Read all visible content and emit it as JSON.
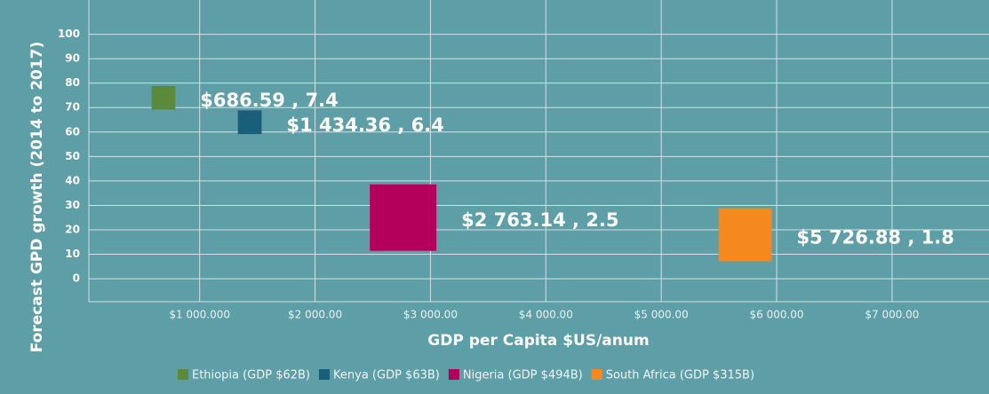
{
  "chart_data": {
    "type": "bubble",
    "x_label": "GDP per Capita $US/anum",
    "y_label": "Forecast GPD growth (2014 to 2017)",
    "xlim": [
      40,
      7840
    ],
    "ylim": [
      -0.94,
      11.4
    ],
    "xticks": [
      {
        "value": 1000,
        "label": "$1 000.000"
      },
      {
        "value": 2000,
        "label": "$2 000.00"
      },
      {
        "value": 3000,
        "label": "$3 000.00"
      },
      {
        "value": 4000,
        "label": "$4 000.00"
      },
      {
        "value": 5000,
        "label": "$5 000.00"
      },
      {
        "value": 6000,
        "label": "$6 000.00"
      },
      {
        "value": 7000,
        "label": "$7 000.00"
      }
    ],
    "yticks": [
      {
        "value": 0,
        "label": "0"
      },
      {
        "value": 1,
        "label": "10"
      },
      {
        "value": 2,
        "label": "20"
      },
      {
        "value": 3,
        "label": "30"
      },
      {
        "value": 4,
        "label": "40"
      },
      {
        "value": 5,
        "label": "50"
      },
      {
        "value": 6,
        "label": "60"
      },
      {
        "value": 7,
        "label": "70"
      },
      {
        "value": 8,
        "label": "80"
      },
      {
        "value": 9,
        "label": "90"
      },
      {
        "value": 10,
        "label": "100"
      }
    ],
    "grid": true,
    "series": [
      {
        "name": "Ethiopia (GDP $62B)",
        "color": "#5b8a3c",
        "x": [
          686.59
        ],
        "values": [
          7.4
        ],
        "sizes": [
          62
        ],
        "value_labels": [
          "$686.59 , 7.4"
        ]
      },
      {
        "name": "Kenya (GDP $63B)",
        "color": "#1a5f7a",
        "x": [
          1434.36
        ],
        "values": [
          6.4
        ],
        "sizes": [
          63
        ],
        "value_labels": [
          "$1 434.36 , 6.4"
        ]
      },
      {
        "name": "Nigeria (GDP $494B)",
        "color": "#b5005b",
        "x": [
          2763.14
        ],
        "values": [
          2.5
        ],
        "sizes": [
          494
        ],
        "value_labels": [
          "$2 763.14 , 2.5"
        ]
      },
      {
        "name": "South Africa (GDP $315B)",
        "color": "#f5891f",
        "x": [
          5726.88
        ],
        "values": [
          1.8
        ],
        "sizes": [
          315
        ],
        "value_labels": [
          "$5 726.88 , 1.8"
        ]
      }
    ]
  }
}
